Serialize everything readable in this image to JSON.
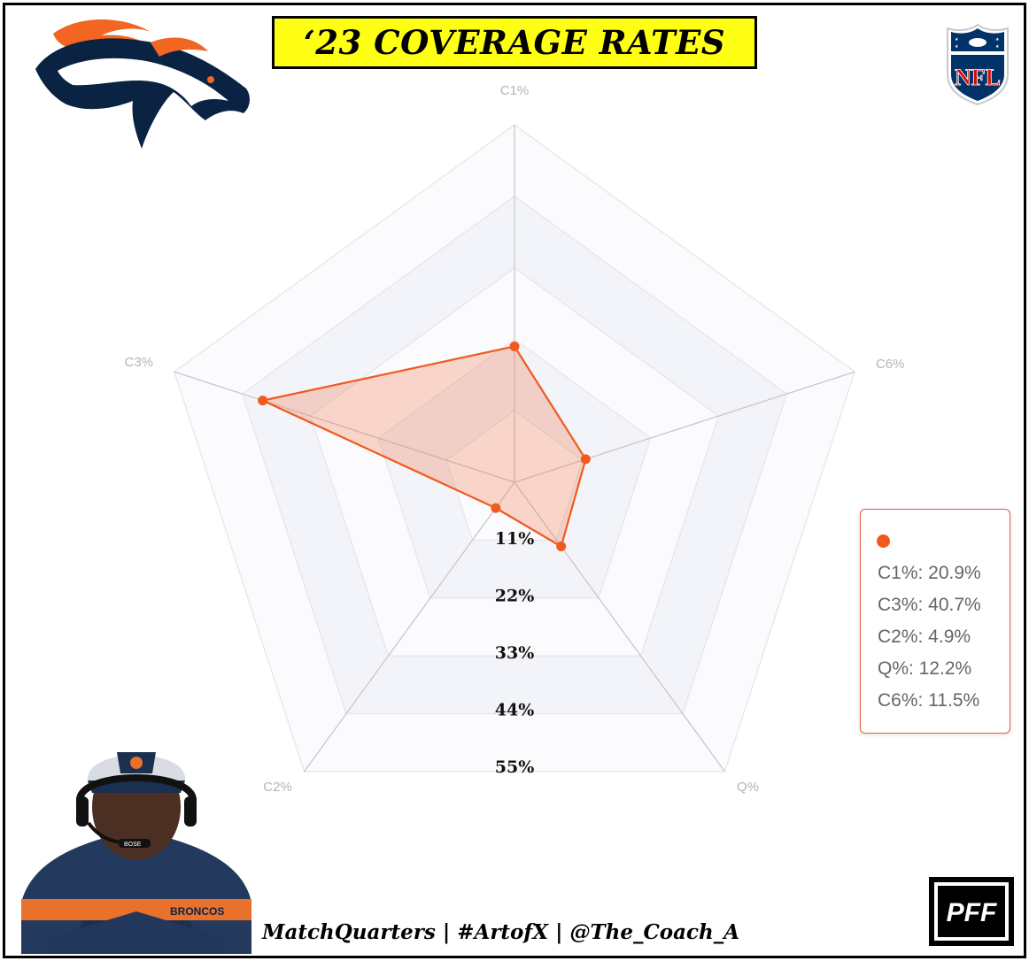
{
  "title": "‘23 COVERAGE RATES",
  "footer": "MatchQuarters | #ArtofX | @The_Coach_A",
  "logos": {
    "left": "denver-broncos-horse-logo",
    "right": "nfl-shield-logo",
    "right_text": "NFL",
    "bottom_right": "pff-logo",
    "bottom_right_text": "PFF",
    "coach_photo": "coach-with-headset-photo",
    "coach_cap_text": "BRONCOS",
    "coach_headset_text": "BOSE"
  },
  "colors": {
    "series": "#f05a1e",
    "series_fill": "rgba(240, 110, 70, 0.28)",
    "title_background": "#ffff14",
    "broncos_orange": "#f26522",
    "broncos_navy": "#0a2343"
  },
  "chart_data": {
    "type": "radar",
    "axes": [
      "C1%",
      "C6%",
      "Q%",
      "C2%",
      "C3%"
    ],
    "rings": [
      "11%",
      "22%",
      "33%",
      "44%",
      "55%"
    ],
    "range": [
      0,
      55
    ],
    "series": [
      {
        "values": [
          20.9,
          11.5,
          12.2,
          4.9,
          40.7
        ]
      }
    ],
    "legend": {
      "position": "right",
      "entries": [
        "C1%: 20.9%",
        "C3%: 40.7%",
        "C2%: 4.9%",
        "Q%: 12.2%",
        "C6%: 11.5%"
      ]
    }
  }
}
